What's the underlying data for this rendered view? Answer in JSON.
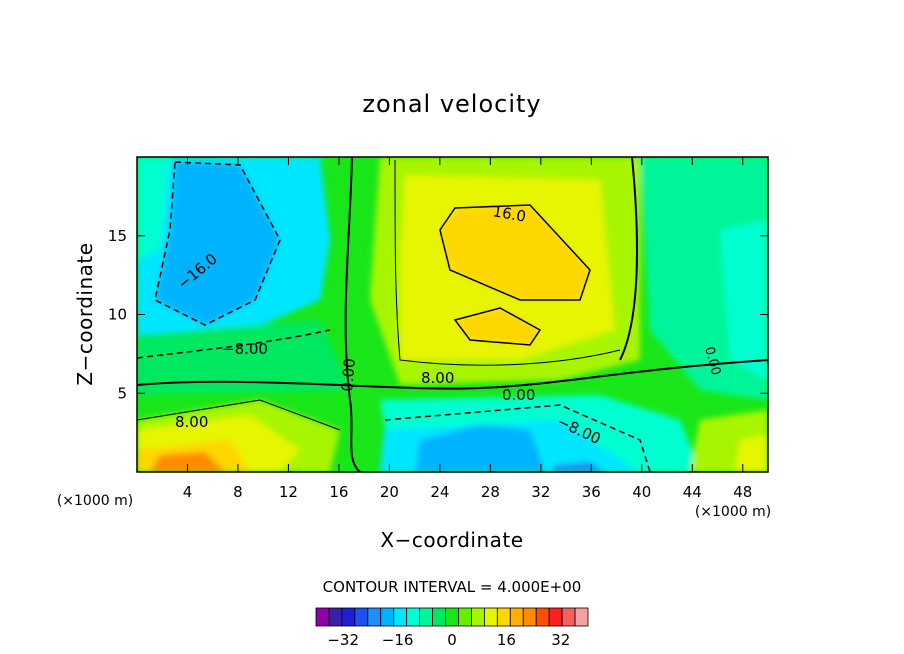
{
  "chart_data": {
    "type": "heatmap",
    "title": "zonal velocity",
    "xlabel": "X−coordinate",
    "ylabel": "Z−coordinate",
    "x_unit": "(×1000 m)",
    "y_unit": "(×1000 m)",
    "xlim": [
      0,
      50
    ],
    "ylim": [
      0,
      20
    ],
    "x_ticks": [
      "4",
      "8",
      "12",
      "16",
      "20",
      "24",
      "28",
      "32",
      "36",
      "40",
      "44",
      "48"
    ],
    "y_ticks": [
      "5",
      "10",
      "15"
    ],
    "contour_interval_text": "CONTOUR INTERVAL = 4.000E+00",
    "contour_labels": [
      "16.0",
      "−16.0",
      "−8.00",
      "0.00",
      "8.00",
      "0.00",
      "8.00",
      "−8.00",
      "0.00"
    ],
    "colorbar": {
      "tick_labels": [
        "−32",
        "−16",
        "0",
        "16",
        "32"
      ],
      "colors": [
        "#8b00a8",
        "#3c1fa8",
        "#1f1fd8",
        "#1f50f0",
        "#1f8ef7",
        "#00b3ff",
        "#00e6ff",
        "#00ffd0",
        "#00f59a",
        "#00e860",
        "#19e619",
        "#66f000",
        "#a8f500",
        "#e6f500",
        "#ffd700",
        "#ffb000",
        "#ff8c00",
        "#ff5000",
        "#ff2020",
        "#f56060",
        "#f5a0a0"
      ]
    },
    "regions": [
      {
        "level": -24,
        "x": 6,
        "z": 14
      },
      {
        "level": -16,
        "x": 5,
        "z": 12.5
      },
      {
        "level": -24,
        "x": 28,
        "z": 2
      },
      {
        "level": -28,
        "x": 35,
        "z": 0.3
      },
      {
        "level": 24,
        "x": 30,
        "z": 13
      },
      {
        "level": 24,
        "x": 29.5,
        "z": 9.5
      },
      {
        "level": 16,
        "x": 30,
        "z": 12
      },
      {
        "level": 24,
        "x": 5.5,
        "z": 1
      },
      {
        "level": 16,
        "x": 6,
        "z": 2.5
      }
    ]
  }
}
